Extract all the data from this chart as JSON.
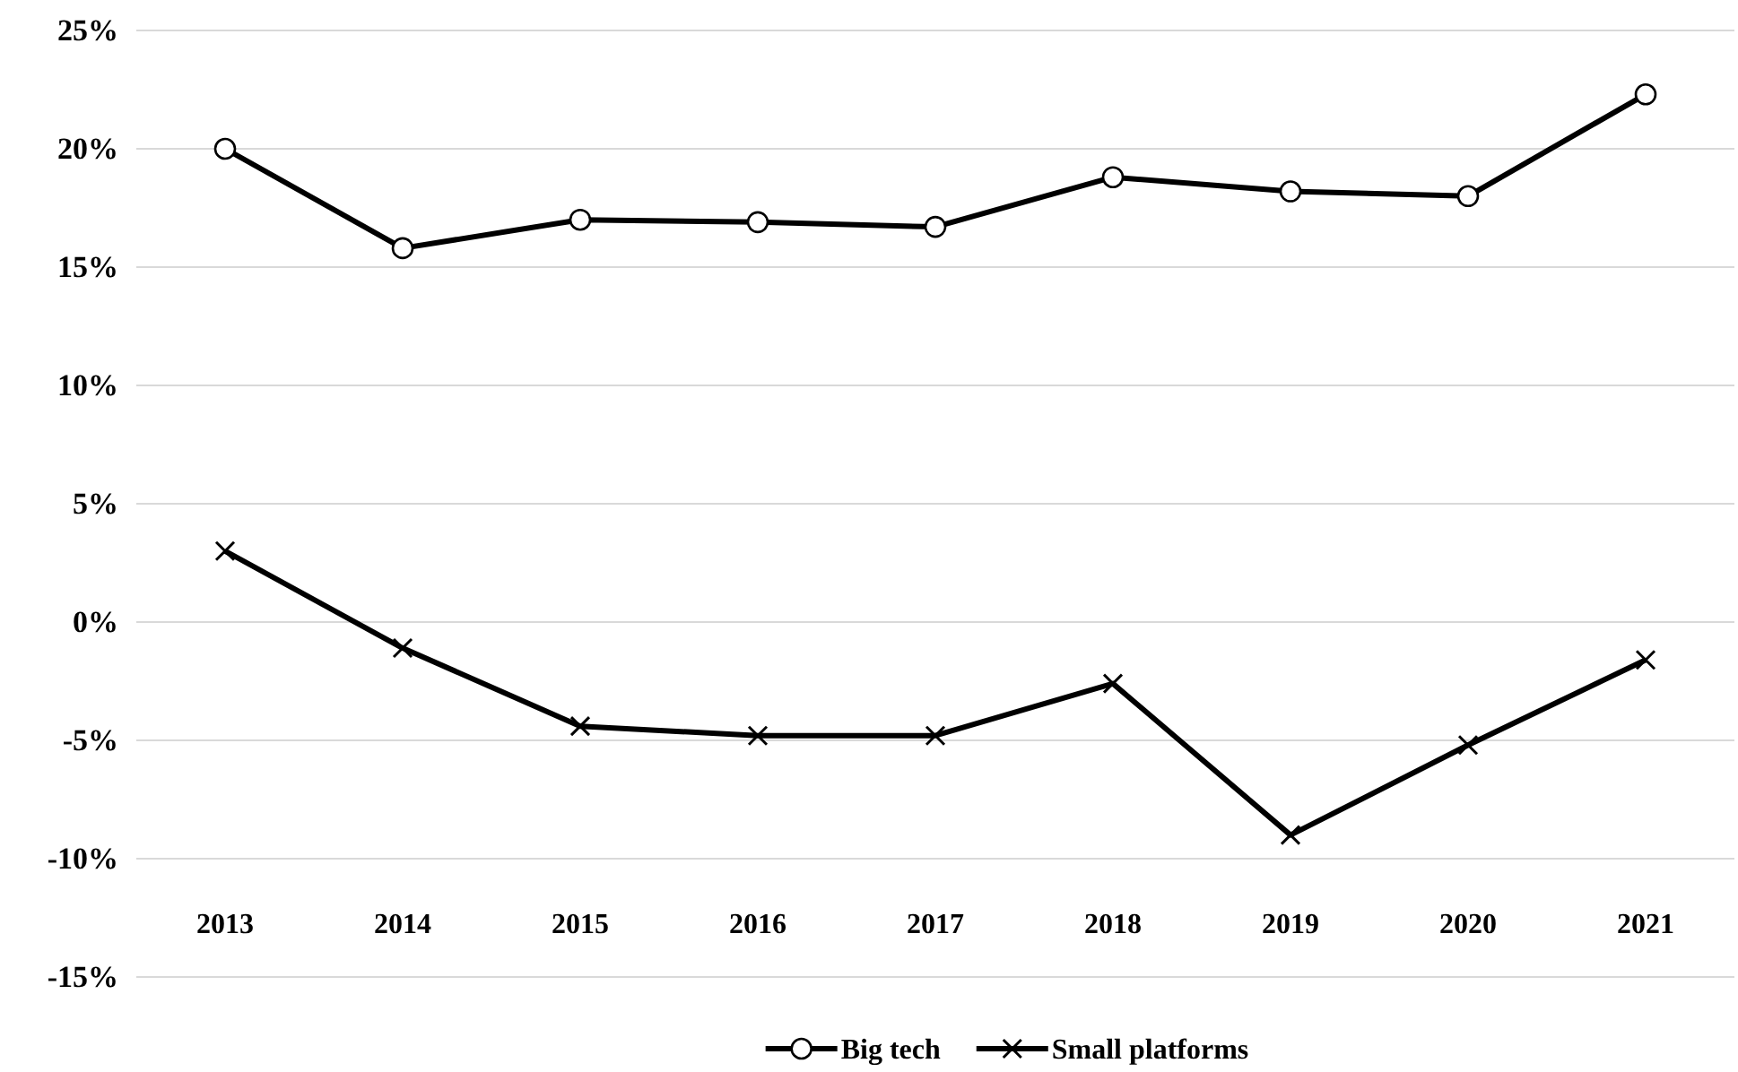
{
  "chart_data": {
    "type": "line",
    "categories": [
      "2013",
      "2014",
      "2015",
      "2016",
      "2017",
      "2018",
      "2019",
      "2020",
      "2021"
    ],
    "series": [
      {
        "name": "Big tech",
        "color": "#000000",
        "marker": "circle",
        "values": [
          20.0,
          15.8,
          17.0,
          16.9,
          16.7,
          18.8,
          18.2,
          18.0,
          22.3
        ]
      },
      {
        "name": "Small platforms",
        "color": "#000000",
        "marker": "cross",
        "values": [
          3.0,
          -1.1,
          -4.4,
          -4.8,
          -4.8,
          -2.6,
          -9.0,
          -5.2,
          -1.6
        ]
      }
    ],
    "ylim": [
      -15,
      25
    ],
    "yticks": [
      {
        "value": -15,
        "label": "-15%"
      },
      {
        "value": -10,
        "label": "-10%"
      },
      {
        "value": -5,
        "label": "-5%"
      },
      {
        "value": 0,
        "label": "0%"
      },
      {
        "value": 5,
        "label": "5%"
      },
      {
        "value": 10,
        "label": "10%"
      },
      {
        "value": 15,
        "label": "15%"
      },
      {
        "value": 20,
        "label": "20%"
      },
      {
        "value": 25,
        "label": "25%"
      }
    ],
    "grid": "y",
    "legend": "bottom",
    "line_style": "solid"
  }
}
